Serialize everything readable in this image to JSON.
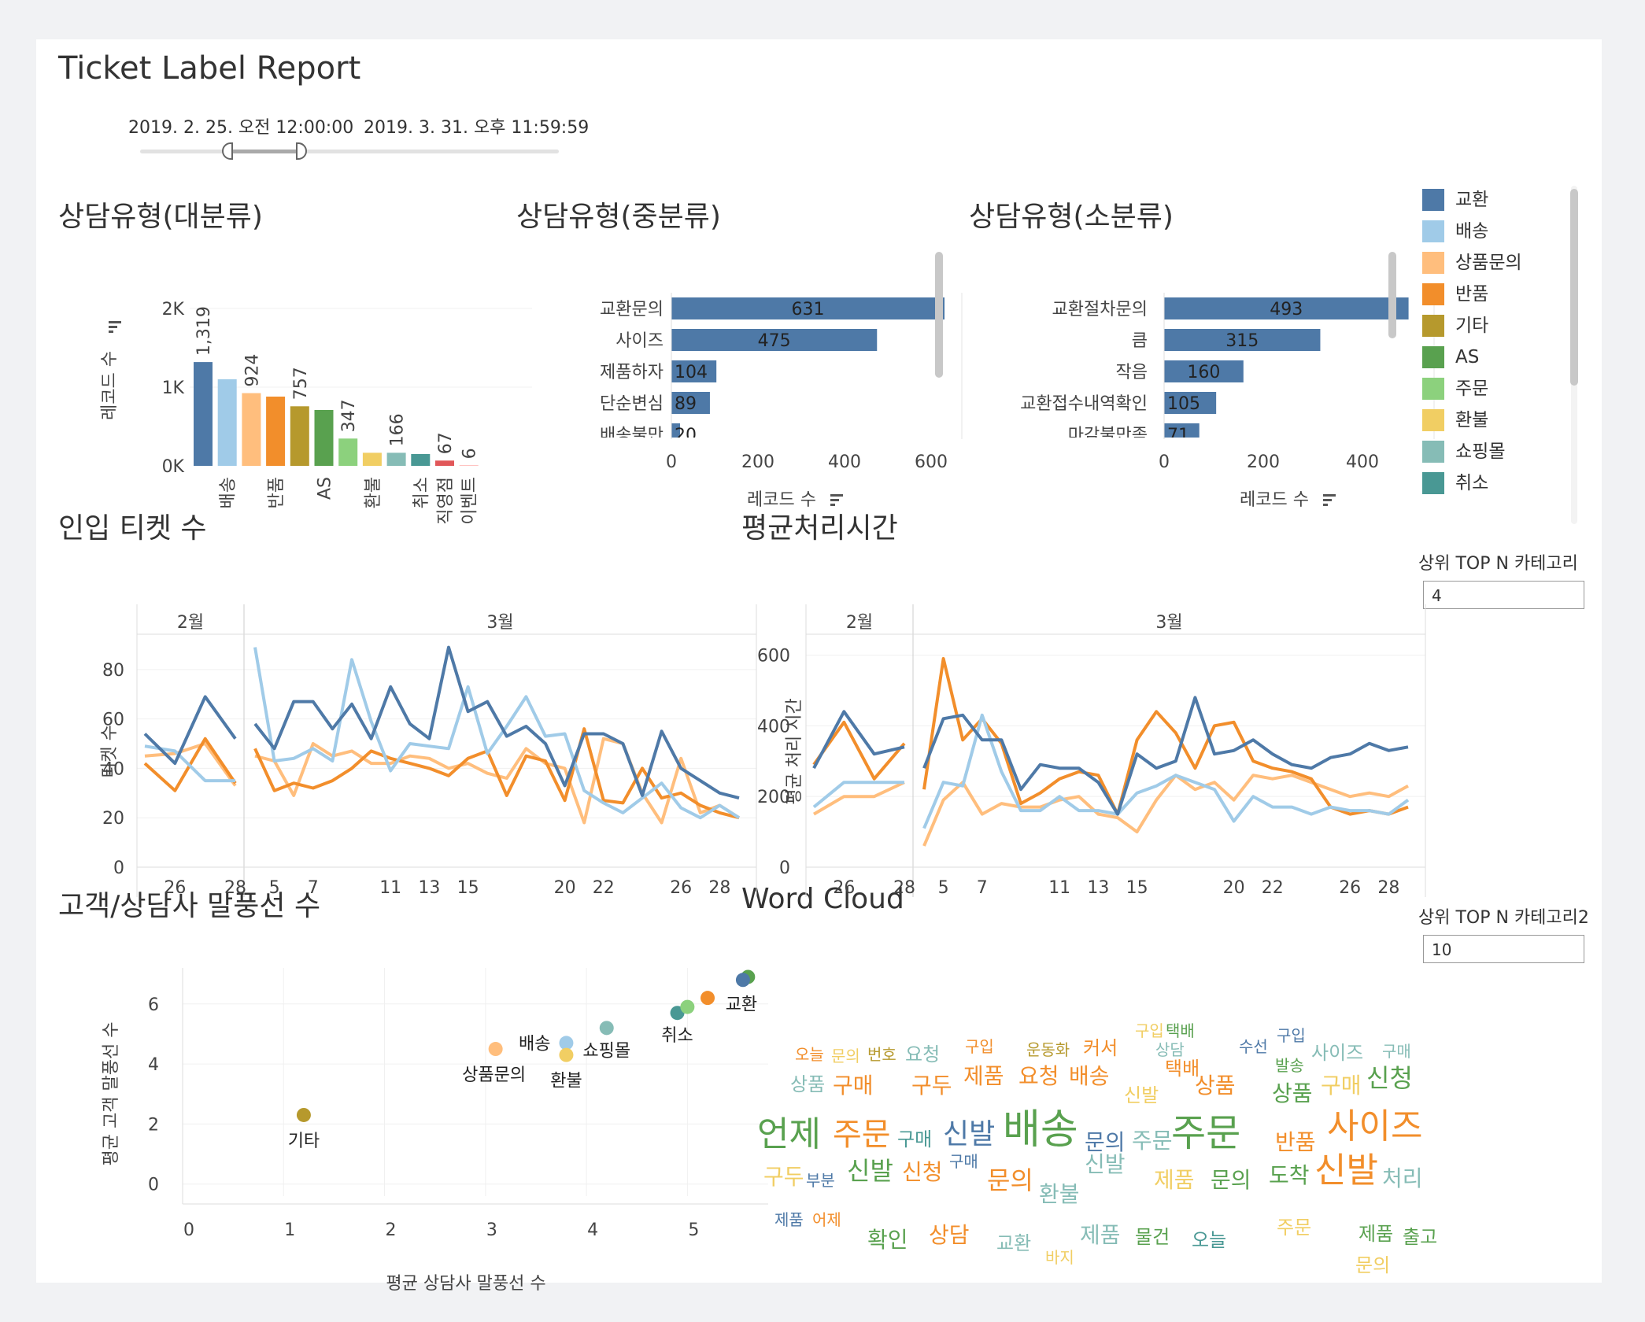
{
  "header": {
    "title": "Ticket Label Report",
    "date_start": "2019. 2. 25. 오전 12:00:00",
    "date_end": "2019. 3. 31. 오후 11:59:59"
  },
  "colors": {
    "교환": "#4e79a7",
    "배송": "#a0cbe8",
    "상품문의": "#ffbe7d",
    "반품": "#f28e2b",
    "기타": "#b6992d",
    "AS": "#59a14f",
    "주문": "#8cd17d",
    "환불": "#f1ce63",
    "쇼핑몰": "#86bcb6",
    "취소": "#499894",
    "직영점": "#e15759",
    "이벤트": "#ff9d9a"
  },
  "legend": {
    "items": [
      "교환",
      "배송",
      "상품문의",
      "반품",
      "기타",
      "AS",
      "주문",
      "환불",
      "쇼핑몰",
      "취소"
    ]
  },
  "params": {
    "topn_label": "상위 TOP N 카테고리",
    "topn_value": "4",
    "topn2_label": "상위 TOP N 카테고리2",
    "topn2_value": "10"
  },
  "chart_data": [
    {
      "id": "major",
      "type": "bar",
      "title": "상담유형(대분류)",
      "ylabel": "레코드 수",
      "yticks": [
        "0K",
        "1K",
        "2K"
      ],
      "ylim": [
        0,
        2000
      ],
      "categories": [
        "교환",
        "배송",
        "상품문의",
        "반품",
        "기타",
        "AS",
        "주문",
        "환불",
        "쇼핑몰",
        "취소",
        "직영점",
        "이벤트"
      ],
      "values": [
        1319,
        1100,
        924,
        880,
        757,
        710,
        347,
        166,
        166,
        150,
        67,
        6
      ],
      "data_labels": {
        "교환": "1,319",
        "상품문의": "924",
        "기타": "757",
        "주문": "347",
        "쇼핑몰": "166",
        "직영점": "67",
        "이벤트": "6"
      },
      "tick_labels": {
        "배송": "배송",
        "반품": "반품",
        "AS": "AS",
        "환불": "환불",
        "취소": "취소",
        "직영점": "직영점",
        "이벤트": "이벤트"
      }
    },
    {
      "id": "mid",
      "type": "bar",
      "orientation": "horizontal",
      "title": "상담유형(중분류)",
      "xlabel": "레코드 수",
      "xticks": [
        0,
        200,
        400,
        600
      ],
      "categories": [
        "교환문의",
        "사이즈",
        "제품하자",
        "단순변심",
        "배송불만"
      ],
      "values": [
        631,
        475,
        104,
        89,
        20
      ]
    },
    {
      "id": "minor",
      "type": "bar",
      "orientation": "horizontal",
      "title": "상담유형(소분류)",
      "xlabel": "레코드 수",
      "xticks": [
        0,
        200,
        400
      ],
      "categories": [
        "교환절차문의",
        "큼",
        "작음",
        "교환접수내역확인",
        "마감불만족"
      ],
      "values": [
        493,
        315,
        160,
        105,
        71
      ]
    },
    {
      "id": "tickets",
      "type": "line",
      "title": "인입 티켓 수",
      "ylabel": "티켓 수",
      "yticks": [
        0,
        20,
        40,
        60,
        80
      ],
      "ylim": [
        0,
        93
      ],
      "panels": [
        {
          "label": "2월",
          "x": [
            25,
            26,
            27,
            28
          ],
          "ticks": [
            "26",
            "28"
          ]
        },
        {
          "label": "3월",
          "x": [
            4,
            5,
            6,
            7,
            8,
            9,
            10,
            11,
            12,
            13,
            14,
            15,
            16,
            17,
            18,
            19,
            20,
            21,
            22,
            23,
            24,
            25,
            26,
            27,
            28,
            29
          ],
          "ticks": [
            "5",
            "7",
            "11",
            "13",
            "15",
            "20",
            "22",
            "26",
            "28"
          ]
        }
      ],
      "series": [
        {
          "name": "상품문의",
          "feb": [
            45,
            46,
            50,
            33
          ],
          "mar": [
            45,
            43,
            29,
            50,
            45,
            47,
            42,
            42,
            45,
            44,
            40,
            42,
            38,
            36,
            48,
            42,
            40,
            18,
            52,
            50,
            30,
            18,
            44,
            22,
            25,
            20
          ]
        },
        {
          "name": "반품",
          "feb": [
            42,
            31,
            52,
            34
          ],
          "mar": [
            48,
            31,
            34,
            32,
            35,
            40,
            47,
            44,
            42,
            40,
            37,
            44,
            47,
            29,
            45,
            43,
            27,
            56,
            27,
            26,
            40,
            28,
            30,
            25,
            22,
            20
          ]
        },
        {
          "name": "배송",
          "feb": [
            49,
            47,
            35,
            35
          ],
          "mar": [
            89,
            43,
            44,
            48,
            43,
            84,
            59,
            39,
            50,
            49,
            48,
            73,
            46,
            57,
            69,
            53,
            54,
            31,
            26,
            22,
            28,
            34,
            24,
            20,
            25,
            20
          ]
        },
        {
          "name": "교환",
          "feb": [
            54,
            42,
            69,
            52
          ],
          "mar": [
            58,
            48,
            67,
            67,
            56,
            66,
            52,
            73,
            58,
            52,
            89,
            63,
            67,
            53,
            57,
            50,
            33,
            54,
            54,
            50,
            29,
            55,
            40,
            35,
            30,
            28
          ]
        }
      ]
    },
    {
      "id": "avgtime",
      "type": "line",
      "title": "평균처리시간",
      "ylabel": "평균 처리 시간",
      "yticks": [
        0,
        200,
        400,
        600
      ],
      "ylim": [
        0,
        650
      ],
      "panels": [
        {
          "label": "2월",
          "x": [
            25,
            26,
            27,
            28
          ],
          "ticks": [
            "26",
            "28"
          ]
        },
        {
          "label": "3월",
          "x": [
            4,
            5,
            6,
            7,
            8,
            9,
            10,
            11,
            12,
            13,
            14,
            15,
            16,
            17,
            18,
            19,
            20,
            21,
            22,
            23,
            24,
            25,
            26,
            27,
            28,
            29
          ],
          "ticks": [
            "5",
            "7",
            "11",
            "13",
            "15",
            "20",
            "22",
            "26",
            "28"
          ]
        }
      ],
      "series": [
        {
          "name": "상품문의",
          "feb": [
            150,
            200,
            200,
            240
          ],
          "mar": [
            60,
            190,
            240,
            150,
            180,
            170,
            170,
            190,
            200,
            150,
            140,
            100,
            190,
            260,
            220,
            240,
            190,
            260,
            250,
            260,
            240,
            220,
            200,
            210,
            200,
            230
          ]
        },
        {
          "name": "반품",
          "feb": [
            290,
            410,
            250,
            350
          ],
          "mar": [
            220,
            590,
            360,
            420,
            350,
            180,
            210,
            250,
            270,
            260,
            150,
            360,
            440,
            380,
            280,
            400,
            410,
            300,
            280,
            270,
            250,
            170,
            150,
            160,
            150,
            170
          ]
        },
        {
          "name": "배송",
          "feb": [
            170,
            240,
            240,
            240
          ],
          "mar": [
            110,
            240,
            230,
            430,
            270,
            160,
            160,
            200,
            160,
            160,
            150,
            210,
            230,
            260,
            240,
            220,
            130,
            200,
            170,
            170,
            150,
            170,
            160,
            160,
            150,
            190
          ]
        },
        {
          "name": "교환",
          "feb": [
            280,
            440,
            320,
            340
          ],
          "mar": [
            280,
            420,
            430,
            360,
            360,
            220,
            290,
            280,
            280,
            240,
            150,
            320,
            280,
            300,
            480,
            320,
            330,
            360,
            320,
            290,
            280,
            310,
            320,
            350,
            330,
            340
          ]
        }
      ]
    },
    {
      "id": "scatter",
      "type": "scatter",
      "title": "고객/상담사 말풍선 수",
      "xlabel": "평균 상담사 말풍선 수",
      "ylabel": "평균 고객 말풍선 수",
      "xticks": [
        0,
        1,
        2,
        3,
        4,
        5
      ],
      "yticks": [
        0,
        2,
        4,
        6
      ],
      "xlim": [
        0,
        5.8
      ],
      "ylim": [
        -0.4,
        7.2
      ],
      "points": [
        {
          "name": "기타",
          "x": 1.2,
          "y": 2.3,
          "label": "기타"
        },
        {
          "name": "상품문의",
          "x": 3.1,
          "y": 4.5,
          "label": "상품문의"
        },
        {
          "name": "배송",
          "x": 3.8,
          "y": 4.7,
          "label": "배송"
        },
        {
          "name": "환불",
          "x": 3.8,
          "y": 4.3,
          "label": "환불"
        },
        {
          "name": "쇼핑몰",
          "x": 4.2,
          "y": 5.2,
          "label": "쇼핑몰"
        },
        {
          "name": "취소",
          "x": 4.9,
          "y": 5.7,
          "label": "취소"
        },
        {
          "name": "주문",
          "x": 5.0,
          "y": 5.9,
          "label": ""
        },
        {
          "name": "반품",
          "x": 5.2,
          "y": 6.2,
          "label": ""
        },
        {
          "name": "AS",
          "x": 5.6,
          "y": 6.9,
          "label": ""
        },
        {
          "name": "교환",
          "x": 5.55,
          "y": 6.8,
          "label": "교환"
        }
      ]
    },
    {
      "id": "wordcloud",
      "type": "wordcloud",
      "title": "Word Cloud",
      "words": [
        {
          "t": "오늘",
          "c": "반품",
          "s": 20
        },
        {
          "t": "문의",
          "c": "환불",
          "s": 20
        },
        {
          "t": "번호",
          "c": "기타",
          "s": 20
        },
        {
          "t": "요청",
          "c": "쇼핑몰",
          "s": 24
        },
        {
          "t": "구입",
          "c": "반품",
          "s": 20
        },
        {
          "t": "운동화",
          "c": "기타",
          "s": 20
        },
        {
          "t": "커서",
          "c": "반품",
          "s": 24
        },
        {
          "t": "구입",
          "c": "환불",
          "s": 20
        },
        {
          "t": "택배",
          "c": "AS",
          "s": 20
        },
        {
          "t": "수선",
          "c": "교환",
          "s": 20
        },
        {
          "t": "구입",
          "c": "교환",
          "s": 20
        },
        {
          "t": "상담",
          "c": "쇼핑몰",
          "s": 20
        },
        {
          "t": "택배",
          "c": "반품",
          "s": 24
        },
        {
          "t": "사이즈",
          "c": "쇼핑몰",
          "s": 24
        },
        {
          "t": "구매",
          "c": "쇼핑몰",
          "s": 20
        },
        {
          "t": "발송",
          "c": "AS",
          "s": 20
        },
        {
          "t": "상품",
          "c": "쇼핑몰",
          "s": 24
        },
        {
          "t": "구매",
          "c": "반품",
          "s": 28
        },
        {
          "t": "구두",
          "c": "반품",
          "s": 28
        },
        {
          "t": "제품",
          "c": "반품",
          "s": 28
        },
        {
          "t": "요청",
          "c": "반품",
          "s": 28
        },
        {
          "t": "배송",
          "c": "반품",
          "s": 28
        },
        {
          "t": "신발",
          "c": "환불",
          "s": 24
        },
        {
          "t": "상품",
          "c": "반품",
          "s": 28
        },
        {
          "t": "상품",
          "c": "AS",
          "s": 28
        },
        {
          "t": "구매",
          "c": "환불",
          "s": 28
        },
        {
          "t": "신청",
          "c": "AS",
          "s": 32
        },
        {
          "t": "언제",
          "c": "AS",
          "s": 44
        },
        {
          "t": "주문",
          "c": "반품",
          "s": 40
        },
        {
          "t": "구매",
          "c": "취소",
          "s": 24
        },
        {
          "t": "신발",
          "c": "교환",
          "s": 36
        },
        {
          "t": "배송",
          "c": "AS",
          "s": 52
        },
        {
          "t": "문의",
          "c": "교환",
          "s": 28
        },
        {
          "t": "주문",
          "c": "쇼핑몰",
          "s": 28
        },
        {
          "t": "주문",
          "c": "AS",
          "s": 48
        },
        {
          "t": "반품",
          "c": "반품",
          "s": 28
        },
        {
          "t": "사이즈",
          "c": "반품",
          "s": 44
        },
        {
          "t": "구두",
          "c": "환불",
          "s": 28
        },
        {
          "t": "부분",
          "c": "교환",
          "s": 20
        },
        {
          "t": "신발",
          "c": "AS",
          "s": 32
        },
        {
          "t": "신청",
          "c": "반품",
          "s": 28
        },
        {
          "t": "구매",
          "c": "교환",
          "s": 20
        },
        {
          "t": "문의",
          "c": "반품",
          "s": 32
        },
        {
          "t": "신발",
          "c": "쇼핑몰",
          "s": 28
        },
        {
          "t": "환불",
          "c": "쇼핑몰",
          "s": 28
        },
        {
          "t": "제품",
          "c": "환불",
          "s": 28
        },
        {
          "t": "문의",
          "c": "AS",
          "s": 28
        },
        {
          "t": "도착",
          "c": "AS",
          "s": 28
        },
        {
          "t": "신발",
          "c": "반품",
          "s": 44
        },
        {
          "t": "처리",
          "c": "쇼핑몰",
          "s": 28
        },
        {
          "t": "제품",
          "c": "교환",
          "s": 20
        },
        {
          "t": "어제",
          "c": "반품",
          "s": 20
        },
        {
          "t": "확인",
          "c": "AS",
          "s": 28
        },
        {
          "t": "상담",
          "c": "반품",
          "s": 28
        },
        {
          "t": "교환",
          "c": "쇼핑몰",
          "s": 24
        },
        {
          "t": "바지",
          "c": "환불",
          "s": 20
        },
        {
          "t": "제품",
          "c": "쇼핑몰",
          "s": 28
        },
        {
          "t": "물건",
          "c": "AS",
          "s": 24
        },
        {
          "t": "오늘",
          "c": "취소",
          "s": 24
        },
        {
          "t": "주문",
          "c": "환불",
          "s": 24
        },
        {
          "t": "제품",
          "c": "AS",
          "s": 24
        },
        {
          "t": "출고",
          "c": "AS",
          "s": 24
        },
        {
          "t": "문의",
          "c": "환불",
          "s": 24
        }
      ]
    }
  ]
}
